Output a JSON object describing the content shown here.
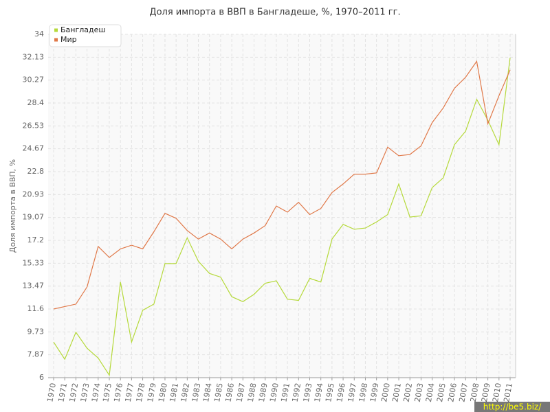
{
  "chart_data": {
    "type": "line",
    "title": "Доля импорта в ВВП в Бангладеше, %, 1970–2011 гг.",
    "y_label": "Доля импорта в ВВП, %",
    "watermark": "http://be5.biz/",
    "categories": [
      "1970",
      "1971",
      "1972",
      "1973",
      "1974",
      "1975",
      "1976",
      "1977",
      "1978",
      "1979",
      "1980",
      "1981",
      "1982",
      "1983",
      "1984",
      "1985",
      "1986",
      "1987",
      "1988",
      "1989",
      "1990",
      "1991",
      "1992",
      "1993",
      "1994",
      "1995",
      "1996",
      "1997",
      "1998",
      "1999",
      "2000",
      "2001",
      "2002",
      "2003",
      "2004",
      "2005",
      "2006",
      "2007",
      "2008",
      "2009",
      "2010",
      "2011"
    ],
    "series": [
      {
        "name": "Бангладеш",
        "color": "#b5d93a",
        "values": [
          8.9,
          7.5,
          9.7,
          8.4,
          7.6,
          6.2,
          13.8,
          8.9,
          11.5,
          12.0,
          15.3,
          15.3,
          17.4,
          15.5,
          14.5,
          14.2,
          12.6,
          12.2,
          12.8,
          13.7,
          13.9,
          12.4,
          12.3,
          14.1,
          13.8,
          17.3,
          18.5,
          18.1,
          18.2,
          18.7,
          19.3,
          21.8,
          19.1,
          19.2,
          21.5,
          22.3,
          25.0,
          26.1,
          28.7,
          27.0,
          25.0,
          32.1
        ]
      },
      {
        "name": "Мир",
        "color": "#e07848",
        "values": [
          11.6,
          11.8,
          12.0,
          13.4,
          16.7,
          15.8,
          16.5,
          16.8,
          16.5,
          17.9,
          19.4,
          19.0,
          18.0,
          17.3,
          17.8,
          17.3,
          16.5,
          17.3,
          17.8,
          18.4,
          20.0,
          19.5,
          20.3,
          19.3,
          19.8,
          21.1,
          21.8,
          22.6,
          22.6,
          22.7,
          24.8,
          24.1,
          24.2,
          24.9,
          26.8,
          28.0,
          29.6,
          30.5,
          31.8,
          26.7,
          29.0,
          31.1
        ]
      }
    ],
    "ylim": [
      6,
      34
    ],
    "yticks": [
      6,
      7.87,
      9.73,
      11.6,
      13.47,
      15.33,
      17.2,
      19.07,
      20.93,
      22.8,
      24.67,
      26.53,
      28.4,
      30.27,
      32.13,
      34
    ],
    "grid": true
  }
}
